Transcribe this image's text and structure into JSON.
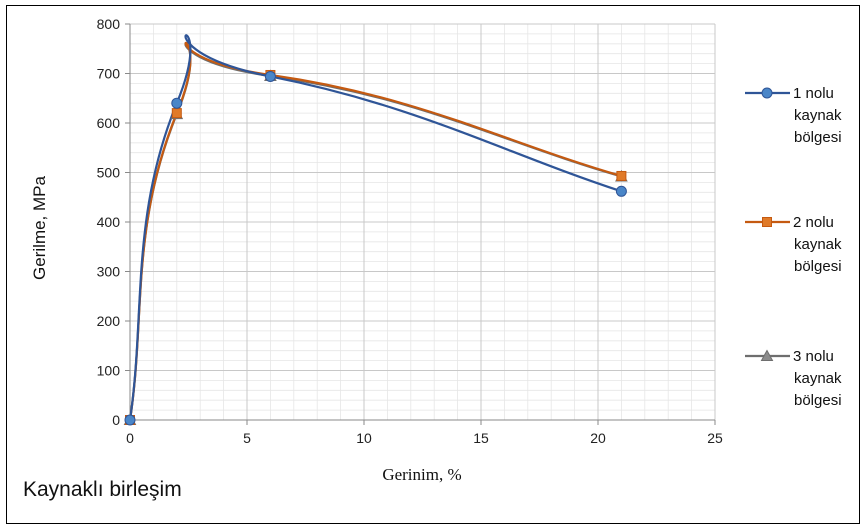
{
  "chart_data": {
    "type": "line",
    "xlabel": "Gerinim, %",
    "ylabel": "Gerilme, MPa",
    "xlim": [
      0,
      25
    ],
    "ylim": [
      0,
      800
    ],
    "x_ticks": [
      0,
      5,
      10,
      15,
      20,
      25
    ],
    "y_ticks": [
      0,
      100,
      200,
      300,
      400,
      500,
      600,
      700,
      800
    ],
    "grid": true,
    "minor_grid": true,
    "legend_position": "right",
    "smooth": true,
    "series": [
      {
        "name": "1 nolu kaynak bölgesi",
        "name_lines": [
          "1 nolu",
          "kaynak",
          "bölgesi"
        ],
        "color": "#2F5597",
        "marker": "circle",
        "marker_color": "#4A86C8",
        "x": [
          0,
          2,
          6,
          21
        ],
        "y": [
          0,
          640,
          694,
          462
        ]
      },
      {
        "name": "2 nolu kaynak bölgesi",
        "name_lines": [
          "2 nolu",
          "kaynak",
          "bölgesi"
        ],
        "color": "#C55A11",
        "marker": "square",
        "marker_color": "#E07A28",
        "x": [
          0,
          2,
          6,
          21
        ],
        "y": [
          0,
          620,
          697,
          493
        ]
      },
      {
        "name": "3 nolu kaynak bölgesi",
        "name_lines": [
          "3 nolu",
          "kaynak",
          "bölgesi"
        ],
        "color": "#6E6E6E",
        "marker": "triangle",
        "marker_color": "#8C8C8C",
        "x": [
          0,
          2,
          6,
          21
        ],
        "y": [
          0,
          618,
          695,
          492
        ]
      }
    ]
  },
  "annotation": "Kaynaklı birleşim"
}
